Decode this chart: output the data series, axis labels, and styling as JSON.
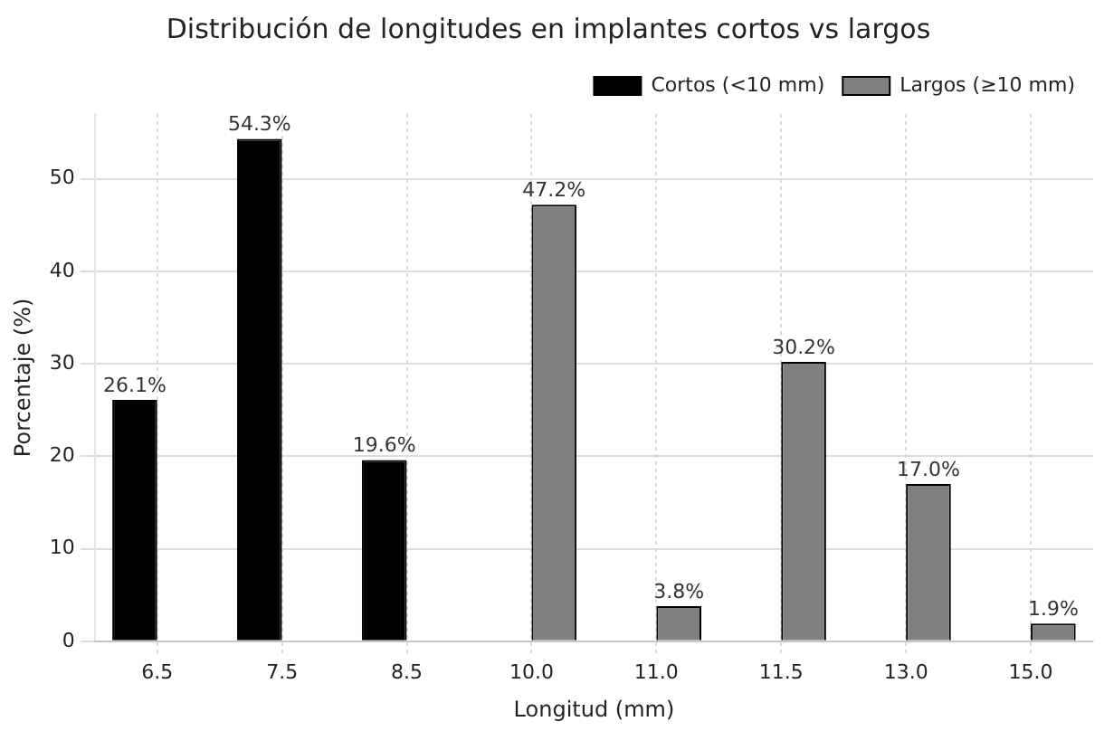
{
  "chart_data": {
    "type": "bar",
    "title": "Distribución de longitudes en implantes cortos vs largos",
    "xlabel": "Longitud (mm)",
    "ylabel": "Porcentaje (%)",
    "categories": [
      "6.5",
      "7.5",
      "8.5",
      "10.0",
      "11.0",
      "11.5",
      "13.0",
      "15.0"
    ],
    "series": [
      {
        "name": "Cortos (<10 mm)",
        "color": "#000000",
        "values": [
          26.1,
          54.3,
          19.6,
          null,
          null,
          null,
          null,
          null
        ],
        "value_labels": [
          "26.1%",
          "54.3%",
          "19.6%",
          null,
          null,
          null,
          null,
          null
        ]
      },
      {
        "name": "Largos (≥10 mm)",
        "color": "#808080",
        "values": [
          null,
          null,
          null,
          47.2,
          3.8,
          30.2,
          17.0,
          1.9
        ],
        "value_labels": [
          null,
          null,
          null,
          "47.2%",
          "3.8%",
          "30.2%",
          "17.0%",
          "1.9%"
        ]
      }
    ],
    "ylim": [
      0,
      57
    ],
    "yticks": [
      0,
      10,
      20,
      30,
      40,
      50
    ],
    "grid": true,
    "legend": "top right"
  }
}
